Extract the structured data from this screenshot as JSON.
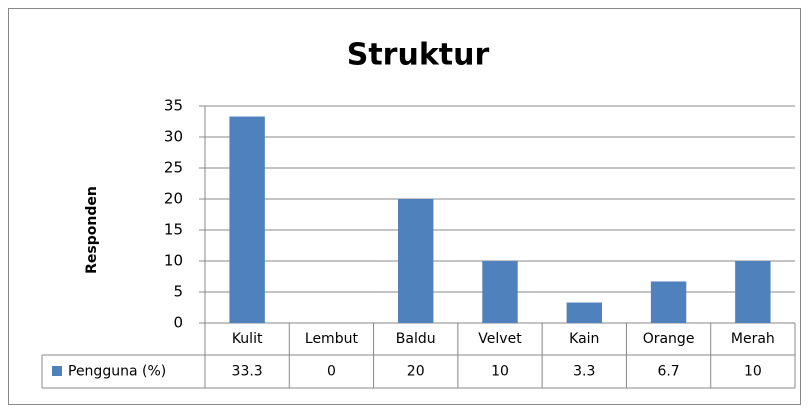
{
  "chart_data": {
    "type": "bar",
    "title": "Struktur",
    "y_label": "Responden",
    "categories": [
      "Kulit",
      "Lembut",
      "Baldu",
      "Velvet",
      "Kain",
      "Orange",
      "Merah"
    ],
    "series": [
      {
        "name": "Pengguna (%)",
        "color": "#4f81bd",
        "values": [
          33.3,
          0,
          20,
          10,
          3.3,
          6.7,
          10
        ]
      }
    ],
    "ylim": [
      0,
      35
    ],
    "yticks": [
      0,
      5,
      10,
      15,
      20,
      25,
      30,
      35
    ],
    "grid": true,
    "data_table": true
  }
}
